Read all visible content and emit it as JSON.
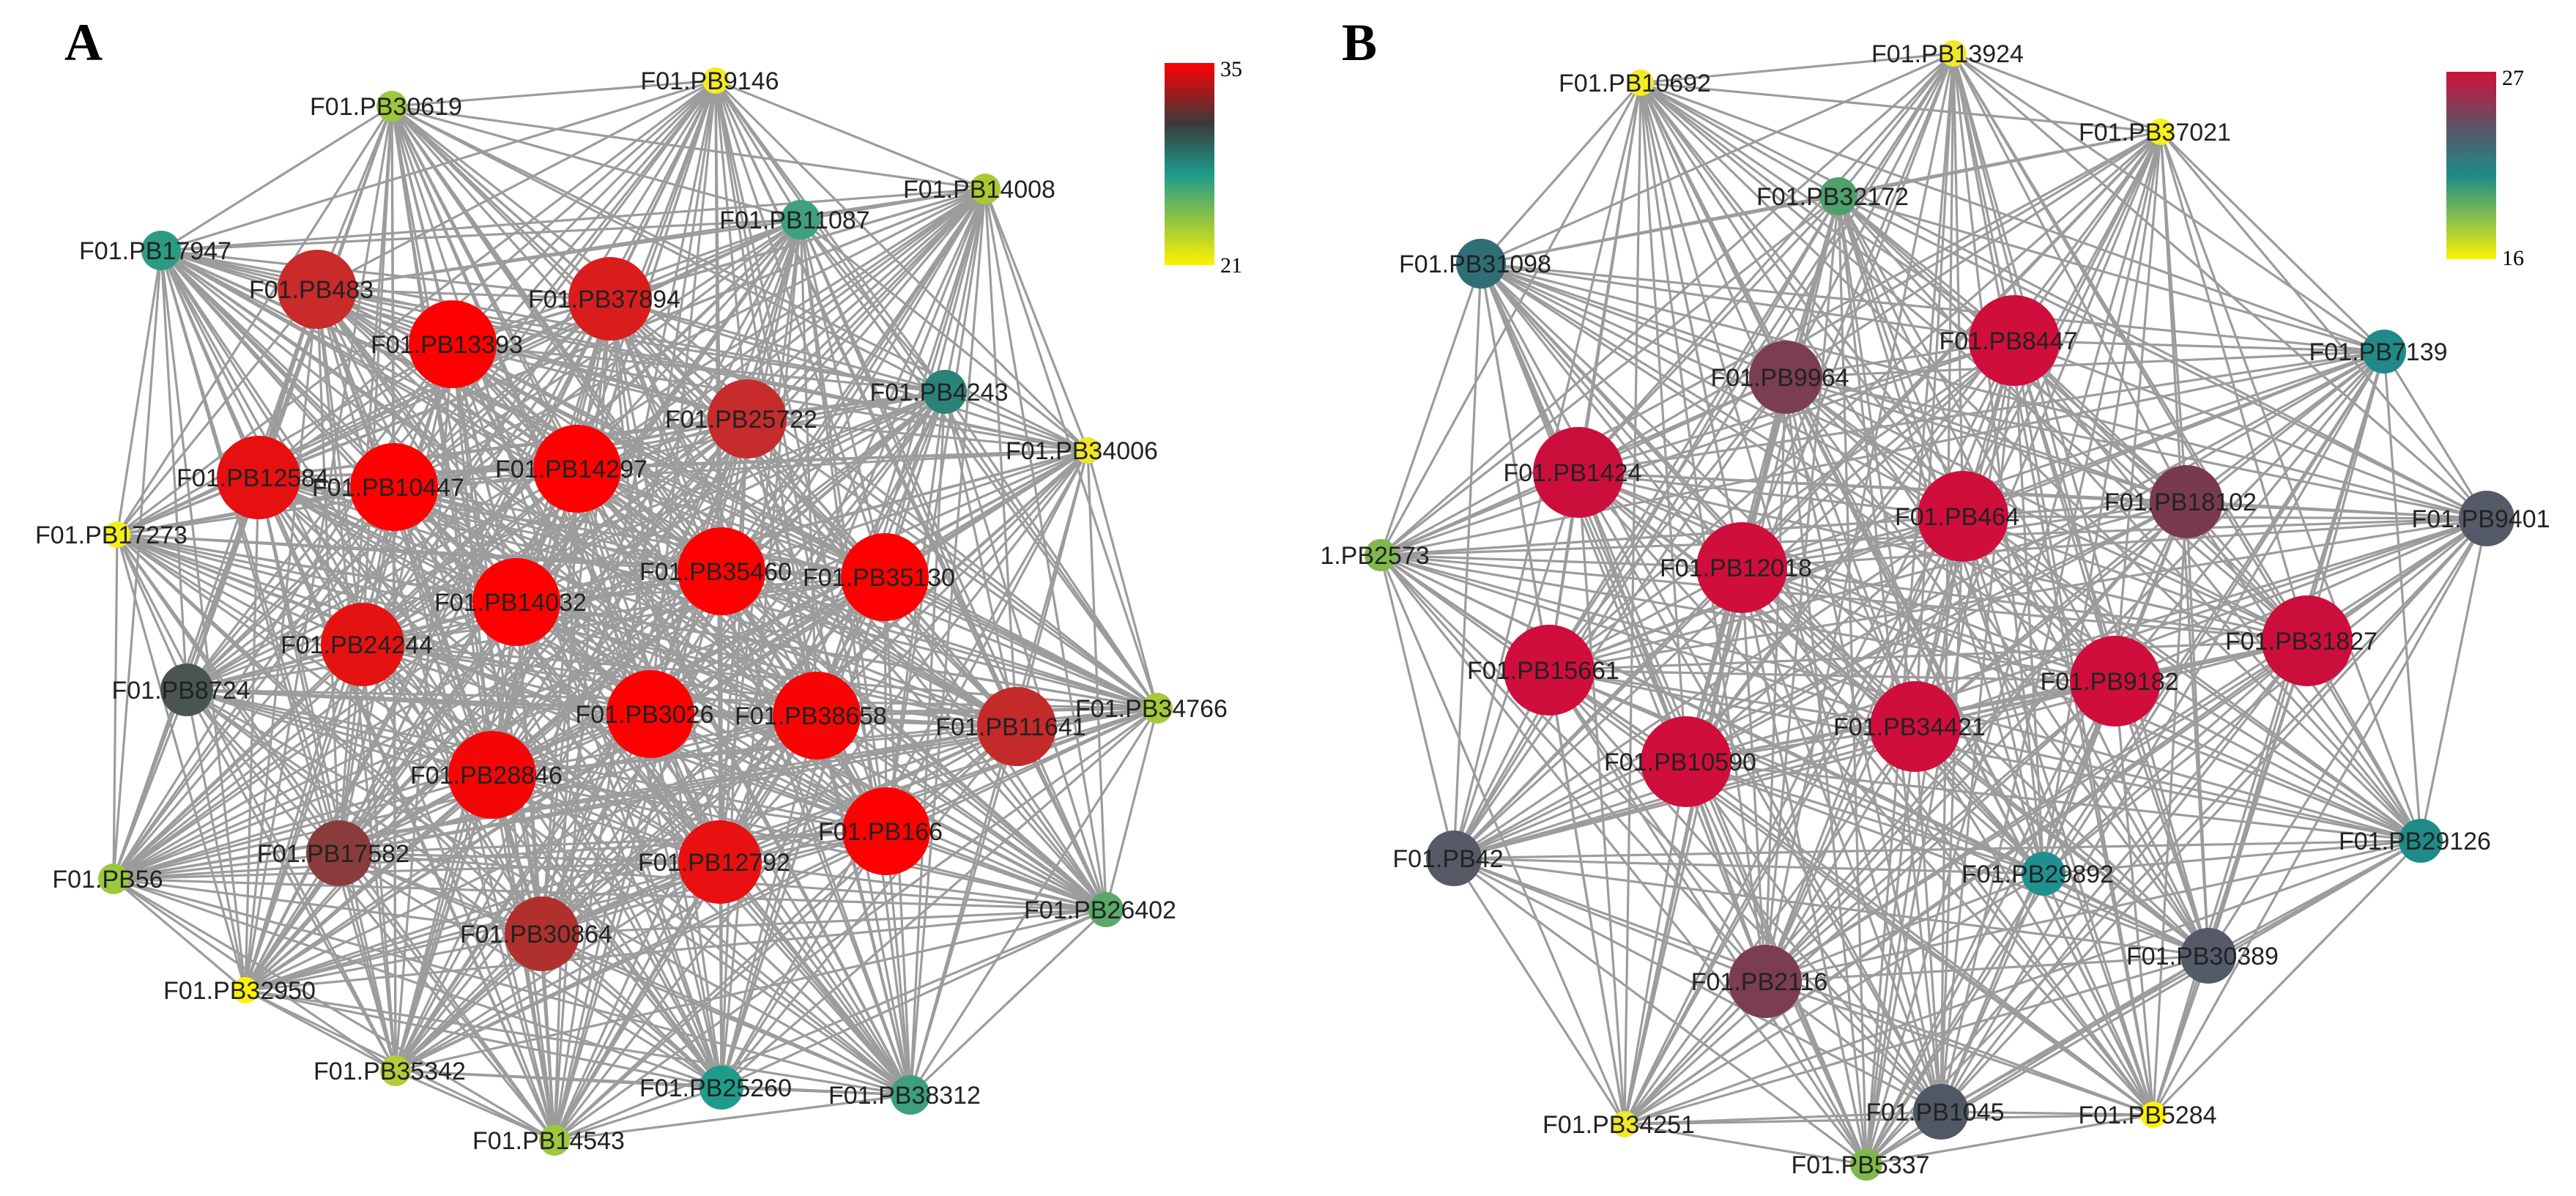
{
  "panels": [
    {
      "id": "A",
      "label": "A",
      "legend": {
        "max_label": "35",
        "min_label": "21",
        "colors": [
          "#ff0000",
          "#3a3a3a",
          "#1e9b8b",
          "#9bc83c",
          "#fff200"
        ]
      },
      "nodes": [
        {
          "name": "F01.PB9146",
          "score": 21,
          "color": "#f5ec1f"
        },
        {
          "name": "F01.PB30619",
          "score": 22,
          "color": "#9bc83c"
        },
        {
          "name": "F01.PB14008",
          "score": 22,
          "color": "#a8c934"
        },
        {
          "name": "F01.PB11087",
          "score": 24,
          "color": "#3ea07e"
        },
        {
          "name": "F01.PB17947",
          "score": 24,
          "color": "#2c9b84"
        },
        {
          "name": "F01.PB483",
          "score": 33,
          "color": "#c92a2a"
        },
        {
          "name": "F01.PB37894",
          "score": 34,
          "color": "#d91d1d"
        },
        {
          "name": "F01.PB13393",
          "score": 35,
          "color": "#ff0000"
        },
        {
          "name": "F01.PB4243",
          "score": 25,
          "color": "#2a8278"
        },
        {
          "name": "F01.PB25722",
          "score": 33,
          "color": "#c62c2c"
        },
        {
          "name": "F01.PB34006",
          "score": 21,
          "color": "#f0e526"
        },
        {
          "name": "F01.PB12584",
          "score": 34,
          "color": "#e61010"
        },
        {
          "name": "F01.PB10447",
          "score": 35,
          "color": "#ff0000"
        },
        {
          "name": "F01.PB14297",
          "score": 35,
          "color": "#ff0000"
        },
        {
          "name": "F01.PB17273",
          "score": 21,
          "color": "#f5ec1f"
        },
        {
          "name": "F01.PB35460",
          "score": 35,
          "color": "#ff0000"
        },
        {
          "name": "F01.PB35130",
          "score": 35,
          "color": "#ff0000"
        },
        {
          "name": "F01.PB14032",
          "score": 35,
          "color": "#ff0000"
        },
        {
          "name": "F01.PB24244",
          "score": 34,
          "color": "#e51212"
        },
        {
          "name": "F01.PB8724",
          "score": 27,
          "color": "#4a5550"
        },
        {
          "name": "F01.PB3026",
          "score": 35,
          "color": "#ff0000"
        },
        {
          "name": "F01.PB38658",
          "score": 35,
          "color": "#f80404"
        },
        {
          "name": "F01.PB11641",
          "score": 33,
          "color": "#c42a2a"
        },
        {
          "name": "F01.PB34766",
          "score": 22,
          "color": "#a4c93a"
        },
        {
          "name": "F01.PB28846",
          "score": 35,
          "color": "#f40606"
        },
        {
          "name": "F01.PB17582",
          "score": 30,
          "color": "#8a3c3c"
        },
        {
          "name": "F01.PB56",
          "score": 22,
          "color": "#9bc83c"
        },
        {
          "name": "F01.PB166",
          "score": 35,
          "color": "#ff0000"
        },
        {
          "name": "F01.PB12792",
          "score": 34,
          "color": "#e81010"
        },
        {
          "name": "F01.PB26402",
          "score": 23,
          "color": "#5aa86a"
        },
        {
          "name": "F01.PB30864",
          "score": 32,
          "color": "#b0302e"
        },
        {
          "name": "F01.PB32950",
          "score": 21,
          "color": "#fff200"
        },
        {
          "name": "F01.PB35342",
          "score": 22,
          "color": "#b5cc34"
        },
        {
          "name": "F01.PB25260",
          "score": 25,
          "color": "#1e9b8b"
        },
        {
          "name": "F01.PB38312",
          "score": 24,
          "color": "#3da07c"
        },
        {
          "name": "F01.PB14543",
          "score": 22,
          "color": "#9fc73c"
        }
      ]
    },
    {
      "id": "B",
      "label": "B",
      "legend": {
        "max_label": "27",
        "min_label": "16",
        "colors": [
          "#d0103a",
          "#5a5566",
          "#1f8a88",
          "#8fc44a",
          "#fff200"
        ]
      },
      "nodes": [
        {
          "name": "F01.PB13924",
          "score": 16,
          "color": "#f2e829"
        },
        {
          "name": "F01.PB10692",
          "score": 16,
          "color": "#f5ec1f"
        },
        {
          "name": "F01.PB37021",
          "score": 16,
          "color": "#f8ee1a"
        },
        {
          "name": "F01.PB32172",
          "score": 18,
          "color": "#4fa06c"
        },
        {
          "name": "F01.PB31098",
          "score": 20,
          "color": "#2f6e75"
        },
        {
          "name": "F01.PB8447",
          "score": 27,
          "color": "#cf0e3b"
        },
        {
          "name": "F01.PB9964",
          "score": 24,
          "color": "#7b3d52"
        },
        {
          "name": "F01.PB7139",
          "score": 19,
          "color": "#1f8a88"
        },
        {
          "name": "F01.PB1424",
          "score": 27,
          "color": "#cc0e3c"
        },
        {
          "name": "F01.PB464",
          "score": 27,
          "color": "#cf0e3b"
        },
        {
          "name": "F01.PB18102",
          "score": 24,
          "color": "#7a3a4e"
        },
        {
          "name": "F01.PB9401",
          "score": 21,
          "color": "#545a68"
        },
        {
          "name": "1.PB2573",
          "score": 17,
          "color": "#7fb94c"
        },
        {
          "name": "F01.PB12018",
          "score": 27,
          "color": "#cf0e3b"
        },
        {
          "name": "F01.PB31827",
          "score": 27,
          "color": "#cc0e3c"
        },
        {
          "name": "F01.PB15661",
          "score": 27,
          "color": "#cf0e3b"
        },
        {
          "name": "F01.PB34421",
          "score": 27,
          "color": "#cf0e3b"
        },
        {
          "name": "F01.PB9182",
          "score": 27,
          "color": "#cf0e3b"
        },
        {
          "name": "F01.PB10590",
          "score": 27,
          "color": "#cf0e3b"
        },
        {
          "name": "F01.PB42",
          "score": 21,
          "color": "#555a66"
        },
        {
          "name": "F01.PB29892",
          "score": 19,
          "color": "#1f9090"
        },
        {
          "name": "F01.PB29126",
          "score": 19,
          "color": "#1f8a88"
        },
        {
          "name": "F01.PB30389",
          "score": 21,
          "color": "#545a68"
        },
        {
          "name": "F01.PB2116",
          "score": 24,
          "color": "#7b3d52"
        },
        {
          "name": "F01.PB34251",
          "score": 16,
          "color": "#f2e829"
        },
        {
          "name": "F01.PB1045",
          "score": 21,
          "color": "#505866"
        },
        {
          "name": "F01.PB5284",
          "score": 16,
          "color": "#fff200"
        },
        {
          "name": "F01.PB5337",
          "score": 17,
          "color": "#7fb94c"
        }
      ]
    }
  ]
}
